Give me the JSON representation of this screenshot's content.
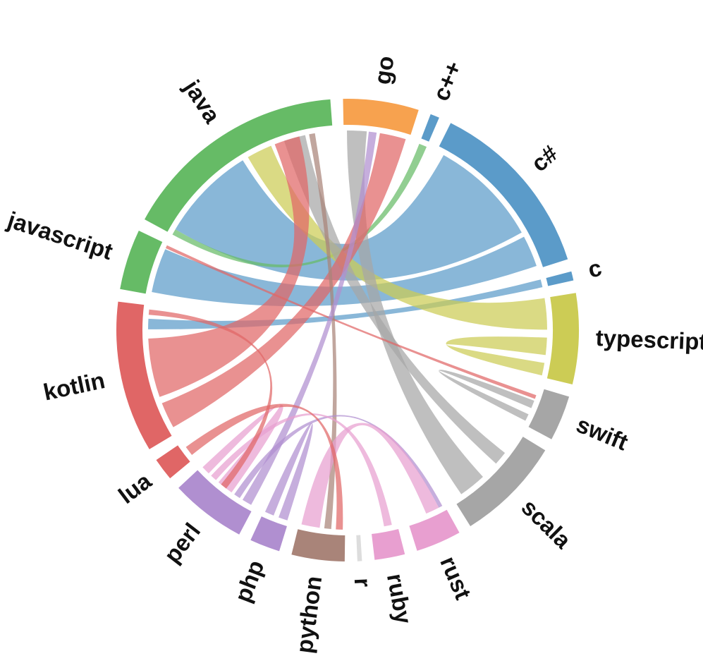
{
  "diagram": {
    "type": "chord",
    "segments": [
      {
        "id": "go",
        "label": "go",
        "color": "#f7a24f",
        "value": 5.0
      },
      {
        "id": "cpp",
        "label": "c++",
        "color": "#5b9bc9",
        "value": 0.6
      },
      {
        "id": "csharp",
        "label": "c#",
        "color": "#5b9bc9",
        "value": 12.0
      },
      {
        "id": "c",
        "label": "c",
        "color": "#5b9bc9",
        "value": 0.6
      },
      {
        "id": "typescript",
        "label": "typescript",
        "color": "#cccc55",
        "value": 6.0
      },
      {
        "id": "swift",
        "label": "swift",
        "color": "#a6a6a6",
        "value": 3.0
      },
      {
        "id": "scala",
        "label": "scala",
        "color": "#a6a6a6",
        "value": 7.0
      },
      {
        "id": "rust",
        "label": "rust",
        "color": "#e89fd0",
        "value": 3.0
      },
      {
        "id": "ruby",
        "label": "ruby",
        "color": "#e89fd0",
        "value": 2.0
      },
      {
        "id": "r",
        "label": "r",
        "color": "#dddddd",
        "value": 0.3
      },
      {
        "id": "python",
        "label": "python",
        "color": "#a98479",
        "value": 3.5
      },
      {
        "id": "php",
        "label": "php",
        "color": "#b08fd0",
        "value": 2.0
      },
      {
        "id": "perl",
        "label": "perl",
        "color": "#b08fd0",
        "value": 5.0
      },
      {
        "id": "lua",
        "label": "lua",
        "color": "#e06666",
        "value": 1.5
      },
      {
        "id": "kotlin",
        "label": "kotlin",
        "color": "#e06666",
        "value": 10.0
      },
      {
        "id": "javascript",
        "label": "javascript",
        "color": "#66bb66",
        "value": 4.0
      },
      {
        "id": "java",
        "label": "java",
        "color": "#66bb66",
        "value": 15.0
      }
    ],
    "ribbons": [
      {
        "source": "java",
        "target": "csharp",
        "color": "#5b9bc9",
        "s": [
          0.03,
          0.52
        ],
        "t": [
          0.05,
          0.75
        ]
      },
      {
        "source": "java",
        "target": "cpp",
        "color": "#66bb66",
        "s": [
          0.0,
          0.03
        ],
        "t": [
          0.0,
          1.0
        ]
      },
      {
        "source": "javascript",
        "target": "csharp",
        "color": "#5b9bc9",
        "s": [
          0.05,
          0.9
        ],
        "t": [
          0.78,
          0.98
        ]
      },
      {
        "source": "kotlin",
        "target": "c",
        "color": "#5b9bc9",
        "s": [
          0.82,
          0.9
        ],
        "t": [
          0.0,
          1.0
        ]
      },
      {
        "source": "java",
        "target": "typescript",
        "color": "#cccc55",
        "s": [
          0.55,
          0.68
        ],
        "t": [
          0.0,
          0.4
        ]
      },
      {
        "source": "typescript",
        "target": "typescript",
        "color": "#cccc55",
        "s": [
          0.5,
          0.72
        ],
        "t": [
          0.82,
          0.98
        ]
      },
      {
        "source": "swift",
        "target": "swift",
        "color": "#a6a6a6",
        "s": [
          0.35,
          0.55
        ],
        "t": [
          0.72,
          0.9
        ]
      },
      {
        "source": "go",
        "target": "scala",
        "color": "#a6a6a6",
        "s": [
          0.05,
          0.35
        ],
        "t": [
          0.6,
          0.9
        ]
      },
      {
        "source": "java",
        "target": "scala",
        "color": "#a6a6a6",
        "s": [
          0.75,
          0.86
        ],
        "t": [
          0.25,
          0.4
        ]
      },
      {
        "source": "go",
        "target": "kotlin",
        "color": "#e06666",
        "s": [
          0.55,
          0.95
        ],
        "t": [
          0.05,
          0.25
        ]
      },
      {
        "source": "java",
        "target": "kotlin",
        "color": "#e06666",
        "s": [
          0.7,
          0.83
        ],
        "t": [
          0.3,
          0.75
        ]
      },
      {
        "source": "javascript",
        "target": "swift",
        "color": "#e06666",
        "s": [
          0.92,
          0.98
        ],
        "t": [
          0.2,
          0.3
        ]
      },
      {
        "source": "java",
        "target": "python",
        "color": "#a98479",
        "s": [
          0.88,
          0.91
        ],
        "t": [
          0.3,
          0.45
        ]
      },
      {
        "source": "go",
        "target": "perl",
        "color": "#b08fd0",
        "s": [
          0.38,
          0.5
        ],
        "t": [
          0.05,
          0.2
        ]
      },
      {
        "source": "rust",
        "target": "perl",
        "color": "#b08fd0",
        "s": [
          0.05,
          0.15
        ],
        "t": [
          0.25,
          0.35
        ]
      },
      {
        "source": "php",
        "target": "php",
        "color": "#b08fd0",
        "s": [
          0.05,
          0.4
        ],
        "t": [
          0.6,
          0.95
        ]
      },
      {
        "source": "rust",
        "target": "python",
        "color": "#e89fd0",
        "s": [
          0.15,
          0.5
        ],
        "t": [
          0.55,
          0.95
        ]
      },
      {
        "source": "perl",
        "target": "perl",
        "color": "#e89fd0",
        "s": [
          0.4,
          0.65
        ],
        "t": [
          0.85,
          0.98
        ]
      },
      {
        "source": "ruby",
        "target": "perl",
        "color": "#e89fd0",
        "s": [
          0.2,
          0.5
        ],
        "t": [
          0.7,
          0.8
        ]
      },
      {
        "source": "python",
        "target": "lua",
        "color": "#e06666",
        "s": [
          0.05,
          0.2
        ],
        "t": [
          0.2,
          0.7
        ]
      },
      {
        "source": "kotlin",
        "target": "perl",
        "color": "#e06666",
        "s": [
          0.93,
          0.97
        ],
        "t": [
          0.5,
          0.6
        ]
      }
    ]
  }
}
